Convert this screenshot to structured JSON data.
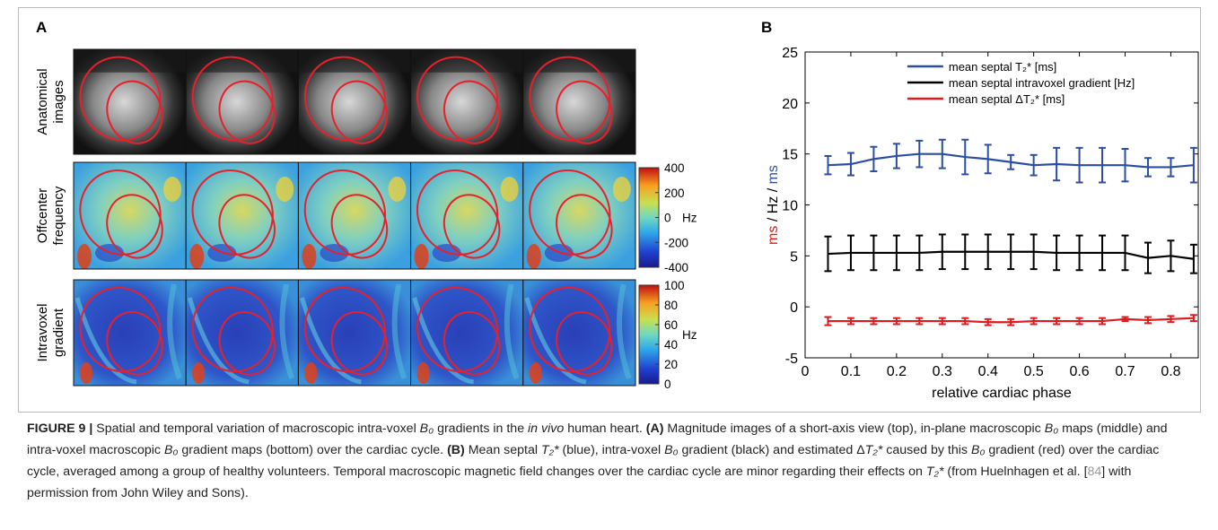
{
  "panel_a": {
    "label": "A",
    "rows": [
      {
        "label": [
          "Anatomical",
          "images"
        ]
      },
      {
        "label": [
          "Offcenter",
          "frequency"
        ]
      },
      {
        "label": [
          "Intravoxel",
          "gradient"
        ]
      }
    ],
    "colorbars": [
      {
        "lim": [
          -400,
          400
        ],
        "ticks": [
          400,
          200,
          0,
          -200,
          -400
        ],
        "unit": "Hz"
      },
      {
        "lim": [
          0,
          100
        ],
        "ticks": [
          100,
          80,
          60,
          40,
          20,
          0
        ],
        "unit": "Hz"
      }
    ]
  },
  "chart_data": {
    "type": "line",
    "panel_label": "B",
    "xlabel": "relative cardiac phase",
    "ylabel_parts": [
      {
        "text": "ms",
        "color": "#e0191c"
      },
      {
        "text": " / Hz / ",
        "color": "#000000"
      },
      {
        "text": "ms",
        "color": "#2b4ea2"
      }
    ],
    "x": [
      0.05,
      0.1,
      0.15,
      0.2,
      0.25,
      0.3,
      0.35,
      0.4,
      0.45,
      0.5,
      0.55,
      0.6,
      0.65,
      0.7,
      0.75,
      0.8,
      0.85
    ],
    "xlim": [
      0,
      0.86
    ],
    "xticks": [
      0,
      0.1,
      0.2,
      0.3,
      0.4,
      0.5,
      0.6,
      0.7,
      0.8
    ],
    "ylim": [
      -5,
      25
    ],
    "yticks": [
      -5,
      0,
      5,
      10,
      15,
      20,
      25
    ],
    "legend": "upper center",
    "series": [
      {
        "name": "mean septal T₂* [ms]",
        "color": "#2b4ea2",
        "values": [
          13.9,
          14.0,
          14.5,
          14.8,
          15.0,
          15.0,
          14.7,
          14.5,
          14.2,
          13.9,
          14.0,
          13.9,
          13.9,
          13.9,
          13.7,
          13.7,
          13.9
        ],
        "errors": [
          0.9,
          1.1,
          1.2,
          1.2,
          1.3,
          1.4,
          1.7,
          1.4,
          0.7,
          1.0,
          1.6,
          1.7,
          1.7,
          1.6,
          0.9,
          0.9,
          1.7
        ]
      },
      {
        "name": "mean septal intravoxel gradient [Hz]",
        "color": "#000000",
        "values": [
          5.2,
          5.3,
          5.3,
          5.3,
          5.3,
          5.4,
          5.4,
          5.4,
          5.4,
          5.4,
          5.3,
          5.3,
          5.3,
          5.3,
          4.8,
          5.0,
          4.7
        ],
        "errors": [
          1.7,
          1.7,
          1.7,
          1.7,
          1.7,
          1.7,
          1.7,
          1.7,
          1.7,
          1.7,
          1.7,
          1.7,
          1.7,
          1.7,
          1.5,
          1.5,
          1.4
        ]
      },
      {
        "name": "mean septal ΔT₂* [ms]",
        "color": "#e0191c",
        "values": [
          -1.4,
          -1.4,
          -1.4,
          -1.4,
          -1.4,
          -1.4,
          -1.4,
          -1.5,
          -1.5,
          -1.4,
          -1.4,
          -1.4,
          -1.4,
          -1.2,
          -1.3,
          -1.2,
          -1.1
        ],
        "errors": [
          0.4,
          0.3,
          0.3,
          0.3,
          0.3,
          0.3,
          0.3,
          0.3,
          0.3,
          0.3,
          0.3,
          0.3,
          0.3,
          0.2,
          0.3,
          0.3,
          0.3
        ]
      }
    ]
  },
  "caption": [
    "FIGURE 9 |",
    " Spatial and temporal variation of macroscopic intra-voxel ",
    "B₀",
    " gradients in the ",
    "in vivo",
    " human heart. ",
    "(A)",
    " Magnitude images of a short-axis view (top), in-plane macroscopic ",
    "B₀",
    " maps (middle) and intra-voxel macroscopic ",
    "B₀",
    " gradient maps (bottom) over the cardiac cycle. ",
    "(B)",
    " Mean septal ",
    "T₂*",
    " (blue), intra-voxel ",
    "B₀",
    " gradient (black) and estimated Δ",
    "T₂*",
    " caused by this ",
    "B₀",
    " gradient (red) over the cardiac cycle, averaged among a group of healthy volunteers. Temporal macroscopic magnetic field changes over the cardiac cycle are minor regarding their effects on ",
    "T₂*",
    " (from Huelnhagen et al. [",
    "84",
    "] with permission from John Wiley and Sons)."
  ]
}
